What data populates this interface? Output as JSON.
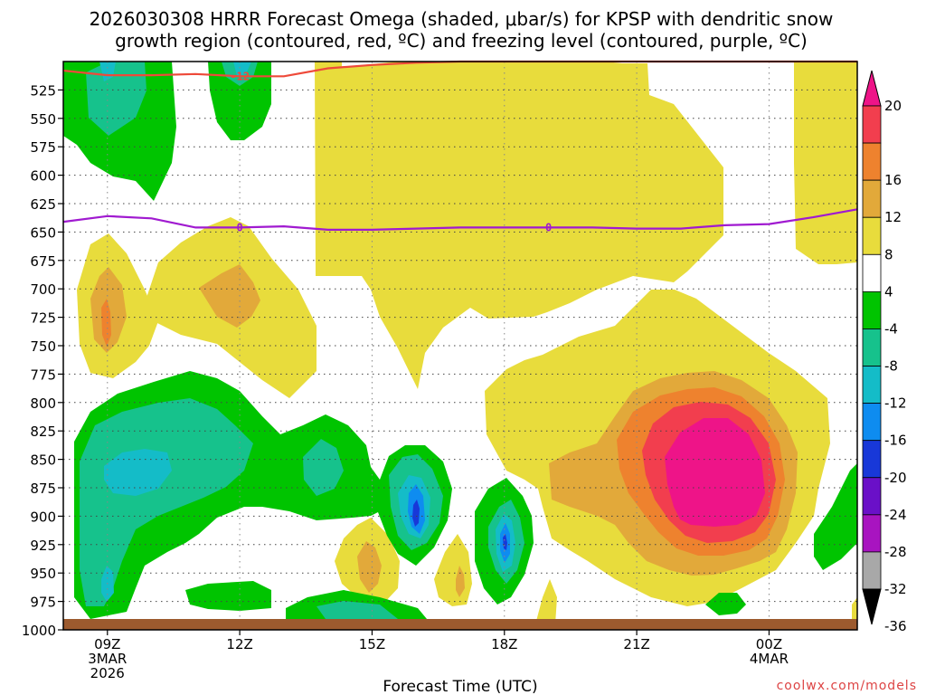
{
  "chart_data": {
    "type": "heatmap",
    "title_line1": "2026030308 HRRR Forecast Omega (shaded, μbar/s) for KPSP with dendritic snow",
    "title_line2": "growth region (contoured, red, ºC) and freezing level (contoured, purple, ºC)",
    "xlabel": "Forecast Time (UTC)",
    "x_ticks": [
      {
        "hour": 9,
        "lines": [
          "09Z",
          "3MAR",
          "2026"
        ]
      },
      {
        "hour": 12,
        "lines": [
          "12Z"
        ]
      },
      {
        "hour": 15,
        "lines": [
          "15Z"
        ]
      },
      {
        "hour": 18,
        "lines": [
          "18Z"
        ]
      },
      {
        "hour": 21,
        "lines": [
          "21Z"
        ]
      },
      {
        "hour": 24,
        "lines": [
          "00Z",
          "4MAR"
        ]
      }
    ],
    "xlim_hours": [
      8,
      26
    ],
    "y_ticks": [
      525,
      550,
      575,
      600,
      625,
      650,
      675,
      700,
      725,
      750,
      775,
      800,
      825,
      850,
      875,
      900,
      925,
      950,
      975,
      1000
    ],
    "ylim_hpa": [
      500,
      1000
    ],
    "colorbar": {
      "labels": [
        "20",
        "16",
        "12",
        "8",
        "4",
        "-4",
        "-8",
        "-12",
        "-16",
        "-20",
        "-24",
        "-28",
        "-32",
        "-36"
      ],
      "bins": [
        {
          "range": "16 to 20",
          "color": "#f23e4e"
        },
        {
          "range": "12 to 16",
          "color": "#ee822e"
        },
        {
          "range": "8 to 12",
          "color": "#e2a93a"
        },
        {
          "range": "4 to 8",
          "color": "#e8dc3c"
        },
        {
          "range": "-4 to 4",
          "color": "#ffffff"
        },
        {
          "range": "-8 to -4",
          "color": "#00c400"
        },
        {
          "range": "-12 to -8",
          "color": "#16c28c"
        },
        {
          "range": "-16 to -12",
          "color": "#14bcc8"
        },
        {
          "range": "-20 to -16",
          "color": "#0e8cf0"
        },
        {
          "range": "-24 to -20",
          "color": "#1838d8"
        },
        {
          "range": "-28 to -24",
          "color": "#6a10c8"
        },
        {
          "range": "-32 to -28",
          "color": "#a814c0"
        },
        {
          "range": "-36 to -32",
          "color": "#a8a8a8"
        }
      ],
      "top_arrow_color": "#ee1488",
      "bottom_arrow_color": "#000000"
    },
    "contours": [
      {
        "name": "dendritic-growth -12C",
        "label": "-12",
        "color": "#ee4a3a",
        "points": [
          [
            8,
            508
          ],
          [
            9,
            512
          ],
          [
            10,
            512
          ],
          [
            11,
            511
          ],
          [
            12,
            513
          ],
          [
            13,
            513
          ],
          [
            14,
            506
          ],
          [
            15,
            503
          ],
          [
            16,
            501
          ],
          [
            17,
            500
          ],
          [
            18,
            500
          ],
          [
            20,
            500
          ],
          [
            22,
            500
          ],
          [
            24,
            500
          ],
          [
            25,
            500
          ],
          [
            26,
            500
          ]
        ]
      },
      {
        "name": "freezing level 0C",
        "label": "0",
        "color": "#a01ad0",
        "points": [
          [
            8,
            641
          ],
          [
            9,
            636
          ],
          [
            10,
            638
          ],
          [
            11,
            646
          ],
          [
            12,
            646
          ],
          [
            13,
            645
          ],
          [
            14,
            648
          ],
          [
            15,
            648
          ],
          [
            16,
            647
          ],
          [
            17,
            646
          ],
          [
            18,
            646
          ],
          [
            19,
            646
          ],
          [
            20,
            646
          ],
          [
            21,
            647
          ],
          [
            22,
            647
          ],
          [
            23,
            644
          ],
          [
            24,
            643
          ],
          [
            25,
            637
          ],
          [
            26,
            630
          ]
        ]
      }
    ],
    "max_value_region": "20+ μbar/s near 22.5Z-23.5Z, 800-875 hPa"
  },
  "credit": "coolwx.com/models"
}
